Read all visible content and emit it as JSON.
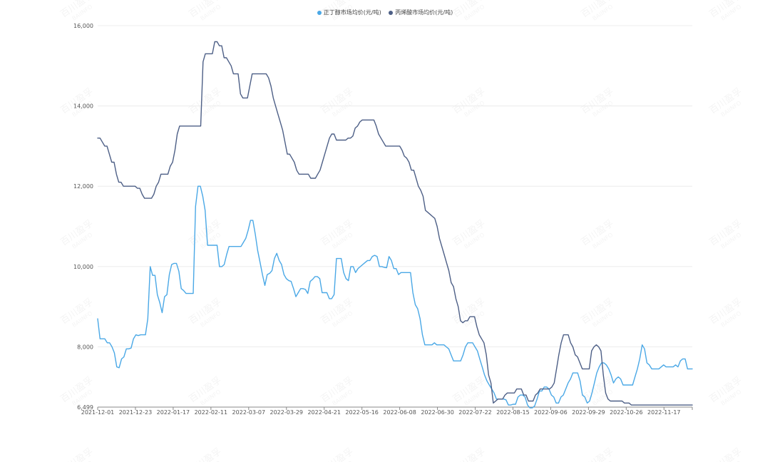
{
  "legend": {
    "items": [
      {
        "label": "正丁醇市场均价(元/吨)",
        "color": "#4aa8e6"
      },
      {
        "label": "丙烯酸市场均价(元/吨)",
        "color": "#4d5f86"
      }
    ]
  },
  "watermark": {
    "text": "百川盈孚",
    "subtext": "BAIINFO"
  },
  "chart_data": {
    "type": "line",
    "y_ticks": [
      6499,
      8000,
      10000,
      12000,
      14000,
      16000
    ],
    "y_tick_labels": [
      "6,499",
      "8,000",
      "10,000",
      "12,000",
      "14,000",
      "16,000"
    ],
    "ylim": [
      6499,
      16000
    ],
    "x_tick_labels": [
      "2021-12-01",
      "2021-12-23",
      "2022-01-17",
      "2022-02-11",
      "2022-03-07",
      "2022-03-29",
      "2022-04-21",
      "2022-05-16",
      "2022-06-08",
      "2022-06-30",
      "2022-07-22",
      "2022-08-15",
      "2022-09-06",
      "2022-09-29",
      "2022-10-26",
      "2022-11-17"
    ],
    "grid": true,
    "legend_position": "top",
    "series": [
      {
        "name": "正丁醇市场均价(元/吨)",
        "color": "#4aa8e6",
        "values": [
          8700,
          8200,
          8200,
          8200,
          8100,
          8100,
          8000,
          7850,
          7500,
          7480,
          7700,
          7750,
          7950,
          7950,
          7970,
          8200,
          8300,
          8280,
          8300,
          8300,
          8300,
          8700,
          10000,
          9780,
          9780,
          9300,
          9100,
          8850,
          9250,
          9300,
          9800,
          10050,
          10080,
          10080,
          9880,
          9450,
          9400,
          9330,
          9330,
          9330,
          9330,
          11500,
          12000,
          12000,
          11750,
          11400,
          10530,
          10530,
          10530,
          10530,
          10530,
          10000,
          10000,
          10050,
          10300,
          10500,
          10500,
          10500,
          10500,
          10500,
          10500,
          10600,
          10700,
          10900,
          11150,
          11150,
          10800,
          10400,
          10100,
          9800,
          9530,
          9800,
          9830,
          9900,
          10200,
          10330,
          10150,
          10050,
          9800,
          9700,
          9650,
          9630,
          9450,
          9250,
          9350,
          9450,
          9450,
          9430,
          9330,
          9630,
          9680,
          9750,
          9750,
          9700,
          9350,
          9350,
          9350,
          9200,
          9200,
          9300,
          10200,
          10200,
          10200,
          9850,
          9700,
          9650,
          10000,
          10000,
          9850,
          9950,
          10000,
          10050,
          10100,
          10150,
          10150,
          10250,
          10280,
          10250,
          10000,
          10000,
          9980,
          9970,
          10250,
          10150,
          9950,
          9950,
          9800,
          9850,
          9850,
          9850,
          9850,
          9850,
          9350,
          9050,
          8950,
          8700,
          8300,
          8050,
          8050,
          8050,
          8050,
          8100,
          8050,
          8050,
          8050,
          8050,
          8000,
          7950,
          7800,
          7650,
          7650,
          7650,
          7650,
          7800,
          8000,
          8100,
          8100,
          8100,
          8000,
          7900,
          7700,
          7500,
          7300,
          7150,
          7050,
          6950,
          6850,
          6700,
          6700,
          6700,
          6700,
          6680,
          6550,
          6550,
          6570,
          6570,
          6750,
          6800,
          6800,
          6750,
          6550,
          6480,
          6480,
          6530,
          6700,
          6900,
          6900,
          7000,
          7000,
          6950,
          6800,
          6750,
          6600,
          6600,
          6750,
          6800,
          6950,
          7100,
          7200,
          7350,
          7350,
          7350,
          7150,
          6800,
          6750,
          6600,
          6650,
          6850,
          7100,
          7350,
          7500,
          7600,
          7600,
          7550,
          7450,
          7300,
          7100,
          7200,
          7250,
          7200,
          7050,
          7050,
          7050,
          7050,
          7050,
          7250,
          7450,
          7700,
          8050,
          7950,
          7600,
          7550,
          7450,
          7450,
          7450,
          7450,
          7500,
          7550,
          7500,
          7500,
          7500,
          7500,
          7550,
          7500,
          7650,
          7700,
          7700,
          7450,
          7450,
          7450
        ]
      },
      {
        "name": "丙烯酸市场均价(元/吨)",
        "color": "#4d5f86",
        "values": [
          13200,
          13200,
          13100,
          13000,
          13000,
          12800,
          12600,
          12600,
          12300,
          12100,
          12100,
          12000,
          12000,
          12000,
          12000,
          12000,
          12000,
          11950,
          11950,
          11800,
          11700,
          11700,
          11700,
          11700,
          11800,
          12000,
          12100,
          12300,
          12300,
          12300,
          12300,
          12500,
          12600,
          12900,
          13300,
          13500,
          13500,
          13500,
          13500,
          13500,
          13500,
          13500,
          13500,
          13500,
          13500,
          15100,
          15300,
          15300,
          15300,
          15300,
          15600,
          15600,
          15500,
          15500,
          15200,
          15200,
          15100,
          15000,
          14800,
          14800,
          14800,
          14300,
          14200,
          14200,
          14200,
          14500,
          14800,
          14800,
          14800,
          14800,
          14800,
          14800,
          14800,
          14700,
          14500,
          14200,
          14000,
          13800,
          13600,
          13400,
          13100,
          12800,
          12800,
          12700,
          12600,
          12400,
          12300,
          12300,
          12300,
          12300,
          12300,
          12200,
          12200,
          12200,
          12300,
          12400,
          12600,
          12800,
          13000,
          13200,
          13300,
          13300,
          13150,
          13150,
          13150,
          13150,
          13150,
          13200,
          13200,
          13250,
          13450,
          13500,
          13600,
          13650,
          13650,
          13650,
          13650,
          13650,
          13650,
          13500,
          13300,
          13200,
          13100,
          13000,
          13000,
          13000,
          13000,
          13000,
          13000,
          13000,
          12900,
          12750,
          12700,
          12600,
          12400,
          12400,
          12200,
          12000,
          11900,
          11750,
          11400,
          11350,
          11300,
          11250,
          11200,
          11000,
          10700,
          10500,
          10300,
          10100,
          9900,
          9600,
          9500,
          9200,
          9000,
          8650,
          8600,
          8650,
          8650,
          8750,
          8750,
          8750,
          8500,
          8300,
          8200,
          8100,
          7800,
          7300,
          7100,
          6600,
          6650,
          6700,
          6700,
          6700,
          6800,
          6850,
          6850,
          6850,
          6850,
          6950,
          6950,
          6950,
          6800,
          6800,
          6650,
          6650,
          6650,
          6800,
          6850,
          6950,
          6950,
          6950,
          6950,
          6950,
          7000,
          7100,
          7450,
          7800,
          8100,
          8300,
          8300,
          8300,
          8100,
          8000,
          7800,
          7750,
          7600,
          7450,
          7450,
          7450,
          7450,
          7900,
          8000,
          8050,
          8000,
          7900,
          7300,
          6850,
          6700,
          6650,
          6650,
          6650,
          6650,
          6650,
          6650,
          6600,
          6600,
          6600,
          6550,
          6550,
          6550,
          6550,
          6550,
          6550,
          6550,
          6550,
          6550,
          6550,
          6550,
          6550,
          6550,
          6550,
          6550,
          6550,
          6550,
          6550,
          6550,
          6550,
          6550,
          6550,
          6550,
          6550,
          6550,
          6550,
          6550
        ]
      }
    ]
  }
}
